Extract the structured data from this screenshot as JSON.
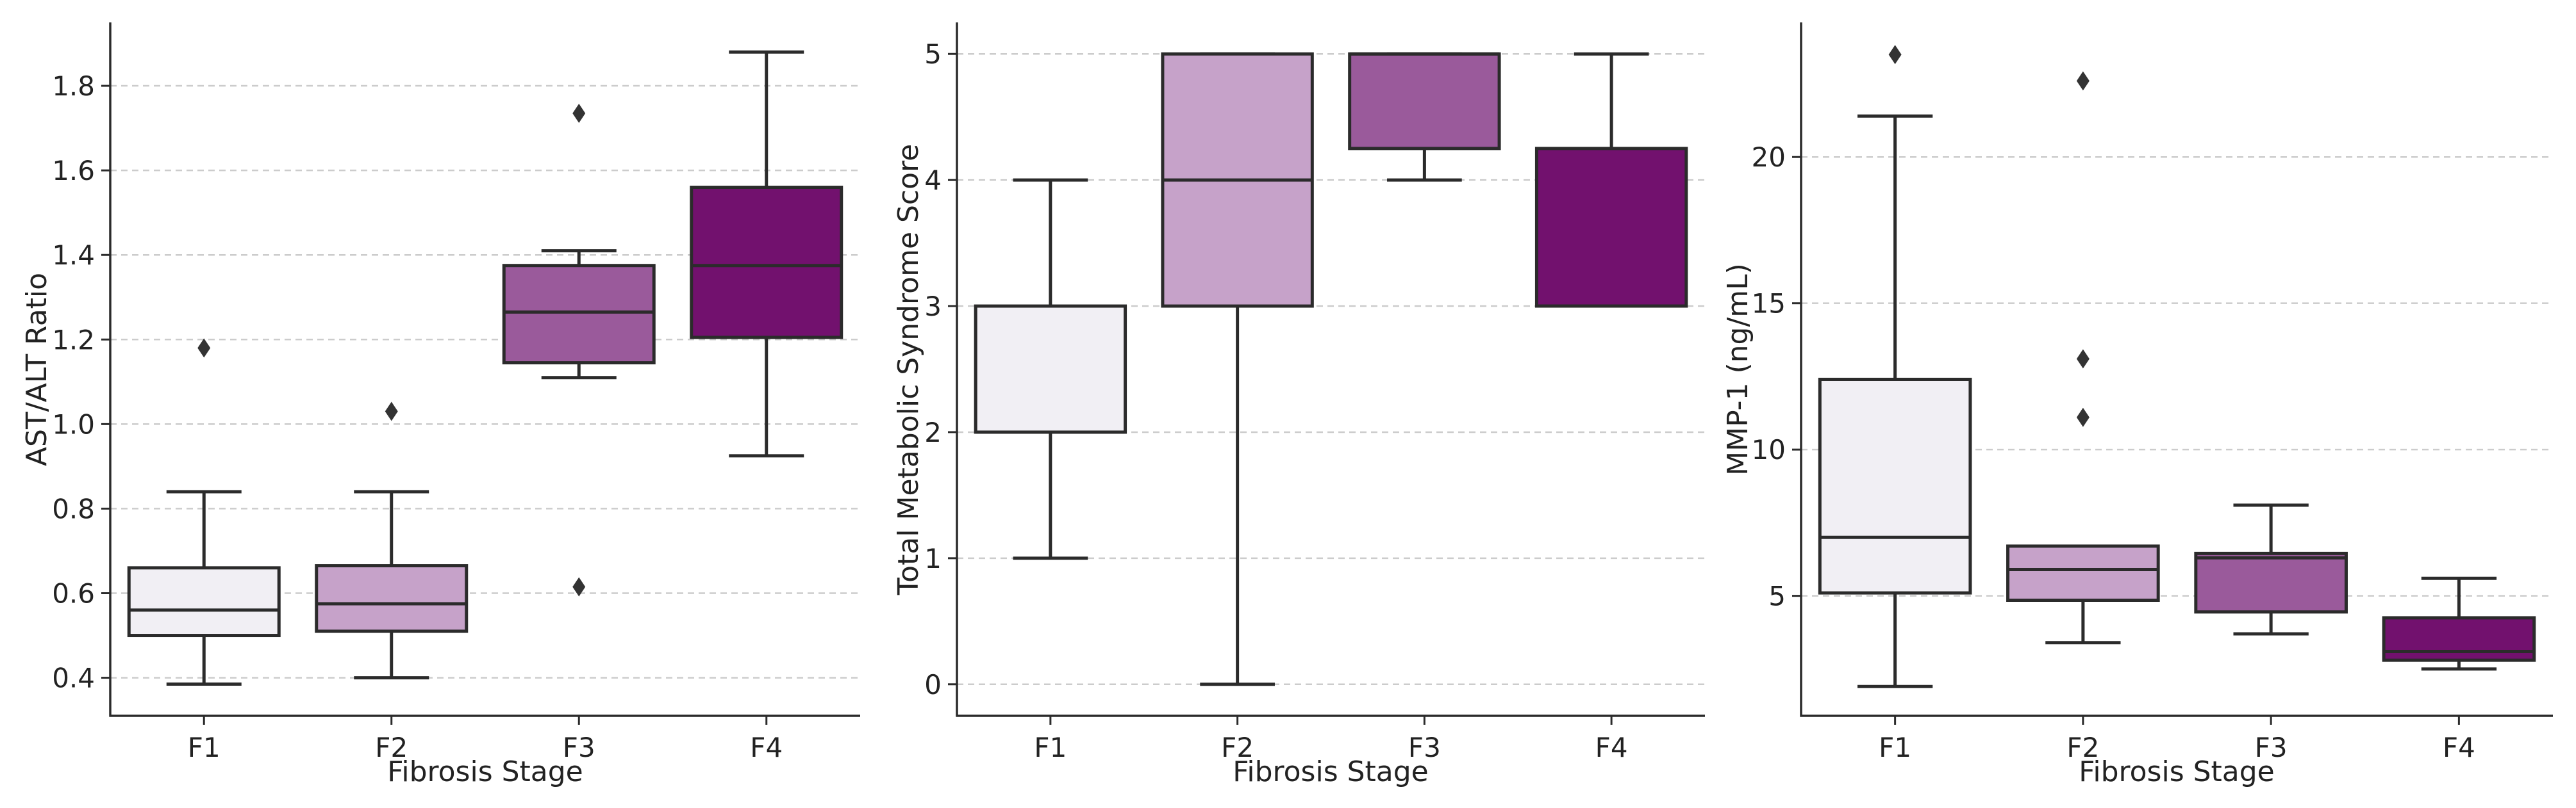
{
  "chart_data": [
    {
      "type": "box",
      "title": "",
      "xlabel": "Fibrosis Stage",
      "ylabel": "AST/ALT Ratio",
      "categories": [
        "F1",
        "F2",
        "F3",
        "F4"
      ],
      "ylim": [
        0.31,
        1.95
      ],
      "yticks": [
        0.4,
        0.6,
        0.8,
        1.0,
        1.2,
        1.4,
        1.6,
        1.8
      ],
      "ytick_labels": [
        "0.4",
        "0.6",
        "0.8",
        "1.0",
        "1.2",
        "1.4",
        "1.6",
        "1.8"
      ],
      "grid": true,
      "boxes": [
        {
          "category": "F1",
          "whisker_low": 0.385,
          "q1": 0.5,
          "median": 0.56,
          "q3": 0.66,
          "whisker_high": 0.84,
          "outliers": [
            1.18
          ]
        },
        {
          "category": "F2",
          "whisker_low": 0.4,
          "q1": 0.51,
          "median": 0.575,
          "q3": 0.665,
          "whisker_high": 0.84,
          "outliers": [
            1.03
          ]
        },
        {
          "category": "F3",
          "whisker_low": 1.11,
          "q1": 1.145,
          "median": 1.265,
          "q3": 1.375,
          "whisker_high": 1.41,
          "outliers": [
            1.735,
            0.615
          ]
        },
        {
          "category": "F4",
          "whisker_low": 0.925,
          "q1": 1.205,
          "median": 1.375,
          "q3": 1.56,
          "whisker_high": 1.88,
          "outliers": []
        }
      ]
    },
    {
      "type": "box",
      "title": "",
      "xlabel": "Fibrosis Stage",
      "ylabel": "Total Metabolic Syndrome Score",
      "categories": [
        "F1",
        "F2",
        "F3",
        "F4"
      ],
      "ylim": [
        -0.25,
        5.25
      ],
      "yticks": [
        0,
        1,
        2,
        3,
        4,
        5
      ],
      "ytick_labels": [
        "0",
        "1",
        "2",
        "3",
        "4",
        "5"
      ],
      "grid": true,
      "boxes": [
        {
          "category": "F1",
          "whisker_low": 1,
          "q1": 2,
          "median": 2,
          "q3": 3,
          "whisker_high": 4,
          "outliers": []
        },
        {
          "category": "F2",
          "whisker_low": 0,
          "q1": 3,
          "median": 4,
          "q3": 5,
          "whisker_high": 5,
          "outliers": []
        },
        {
          "category": "F3",
          "whisker_low": 4,
          "q1": 4.25,
          "median": 5,
          "q3": 5,
          "whisker_high": 5,
          "outliers": []
        },
        {
          "category": "F4",
          "whisker_low": 3,
          "q1": 3,
          "median": 3,
          "q3": 4.25,
          "whisker_high": 5,
          "outliers": []
        }
      ]
    },
    {
      "type": "box",
      "title": "",
      "xlabel": "Fibrosis Stage",
      "ylabel": "MMP-1 (ng/mL)",
      "categories": [
        "F1",
        "F2",
        "F3",
        "F4"
      ],
      "ylim": [
        0.9,
        24.6
      ],
      "yticks": [
        5,
        10,
        15,
        20
      ],
      "ytick_labels": [
        "5",
        "10",
        "15",
        "20"
      ],
      "grid": true,
      "boxes": [
        {
          "category": "F1",
          "whisker_low": 1.9,
          "q1": 5.1,
          "median": 7.0,
          "q3": 12.4,
          "whisker_high": 21.4,
          "outliers": [
            23.5
          ]
        },
        {
          "category": "F2",
          "whisker_low": 3.4,
          "q1": 4.85,
          "median": 5.9,
          "q3": 6.7,
          "whisker_high": 6.7,
          "outliers": [
            22.6,
            13.1,
            11.1
          ]
        },
        {
          "category": "F3",
          "whisker_low": 3.7,
          "q1": 4.45,
          "median": 6.3,
          "q3": 6.45,
          "whisker_high": 8.1,
          "outliers": []
        },
        {
          "category": "F4",
          "whisker_low": 2.5,
          "q1": 2.8,
          "median": 3.1,
          "q3": 4.25,
          "whisker_high": 5.6,
          "outliers": []
        }
      ]
    }
  ],
  "colors": {
    "F1": "#f1eff4",
    "F2": "#c6a2c9",
    "F3": "#9a5a9b",
    "F4": "#72116e",
    "stroke": "#2b2b2b",
    "grid": "#cccccc"
  }
}
